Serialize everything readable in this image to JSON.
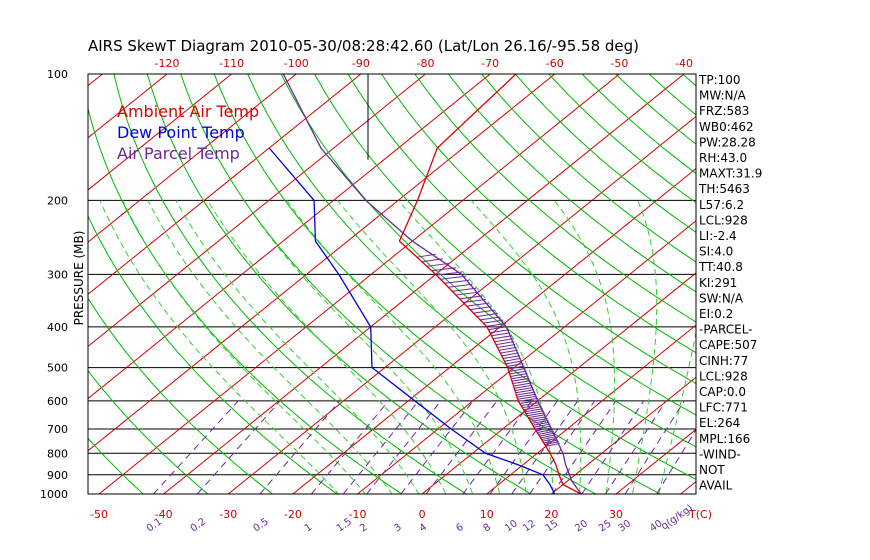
{
  "chart_data": {
    "type": "line",
    "title": "AIRS SkewT Diagram 2010-05-30/08:28:42.60 (Lat/Lon 26.16/-95.58 deg)",
    "ylabel": "PRESSURE (MB)",
    "y_scale": "log",
    "ylim": [
      1000,
      100
    ],
    "y_ticks": [
      "100",
      "200",
      "300",
      "400",
      "500",
      "600",
      "700",
      "800",
      "900",
      "1000"
    ],
    "y_tick_values": [
      100,
      200,
      300,
      400,
      500,
      600,
      700,
      800,
      900,
      1000
    ],
    "x_bottom_ticks": [
      "-50",
      "-40",
      "-30",
      "-20",
      "-10",
      "0",
      "10",
      "20",
      "30"
    ],
    "x_bottom_values": [
      -50,
      -40,
      -30,
      -20,
      -10,
      0,
      10,
      20,
      30
    ],
    "x_bottom_unit": "T(C)",
    "x_top_ticks": [
      "-120",
      "-110",
      "-100",
      "-90",
      "-80",
      "-70",
      "-60",
      "-50",
      "-40"
    ],
    "x_top_values": [
      -120,
      -110,
      -100,
      -90,
      -80,
      -70,
      -60,
      -50,
      -40
    ],
    "mixing_ratio_labels": [
      "0.1",
      "0.2",
      "0.5",
      "1",
      "1.5",
      "2",
      "3",
      "4",
      "6",
      "8",
      "10",
      "12",
      "15",
      "20",
      "25",
      "30",
      "40"
    ],
    "mixing_ratio_values": [
      0.1,
      0.2,
      0.5,
      1,
      1.5,
      2,
      3,
      4,
      6,
      8,
      10,
      12,
      15,
      20,
      25,
      30,
      40
    ],
    "mixing_ratio_unit": "q(g/kg)",
    "grid": true,
    "legend": [
      {
        "name": "Ambient Air Temp",
        "color": "#e00000"
      },
      {
        "name": "Dew Point Temp",
        "color": "#0000e0"
      },
      {
        "name": "Air Parcel Temp",
        "color": "#6a2a9a"
      }
    ],
    "series": [
      {
        "name": "Ambient Air Temp",
        "color": "#e00000",
        "points": [
          [
            1000,
            24.6
          ],
          [
            950,
            20.0
          ],
          [
            900,
            17.5
          ],
          [
            850,
            15.0
          ],
          [
            800,
            12.0
          ],
          [
            700,
            5.0
          ],
          [
            600,
            -3.0
          ],
          [
            500,
            -11.0
          ],
          [
            400,
            -22.0
          ],
          [
            300,
            -40.0
          ],
          [
            250,
            -52.0
          ],
          [
            200,
            -57.0
          ],
          [
            150,
            -64.0
          ],
          [
            100,
            -66.0
          ]
        ]
      },
      {
        "name": "Dew Point Temp",
        "color": "#0000e0",
        "points": [
          [
            1000,
            20.5
          ],
          [
            950,
            18.0
          ],
          [
            900,
            15.0
          ],
          [
            850,
            9.0
          ],
          [
            800,
            2.0
          ],
          [
            700,
            -8.0
          ],
          [
            600,
            -19.0
          ],
          [
            500,
            -32.0
          ],
          [
            400,
            -40.0
          ],
          [
            300,
            -55.0
          ],
          [
            250,
            -65.0
          ],
          [
            200,
            -73.0
          ],
          [
            150,
            -90.0
          ]
        ]
      },
      {
        "name": "Air Parcel Temp",
        "color": "#6a2a9a",
        "points": [
          [
            1000,
            24.6
          ],
          [
            928,
            20.5
          ],
          [
            850,
            16.5
          ],
          [
            800,
            14.0
          ],
          [
            700,
            7.5
          ],
          [
            600,
            0.0
          ],
          [
            500,
            -8.5
          ],
          [
            400,
            -19.0
          ],
          [
            300,
            -36.0
          ],
          [
            250,
            -50.0
          ],
          [
            200,
            -65.0
          ],
          [
            150,
            -82.0
          ],
          [
            100,
            -102.0
          ]
        ]
      }
    ],
    "stats": [
      "TP:100",
      "MW:N/A",
      "FRZ:583",
      "WB0:462",
      "PW:28.28",
      "RH:43.0",
      "MAXT:31.9",
      "TH:5463",
      "L57:6.2",
      "LCL:928",
      "LI:-2.4",
      "SI:4.0",
      "TT:40.8",
      "KI:291",
      "SW:N/A",
      "EI:0.2",
      "-PARCEL-",
      "CAPE:507",
      "CINH:77",
      "LCL:928",
      "CAP:0.0",
      "LFC:771",
      "EL:264",
      "MPL:166",
      "-WIND-",
      "NOT",
      "AVAIL"
    ],
    "colors": {
      "isotherm": "#d00000",
      "dry_adiabat": "#00b800",
      "moist_adiabat": "#33cc33",
      "mixing_ratio": "#6a2a9a",
      "axis": "#000000"
    }
  }
}
